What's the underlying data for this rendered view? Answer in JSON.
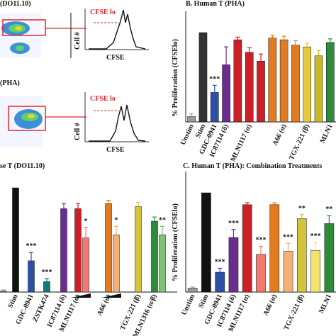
{
  "flow_panels": [
    {
      "title": "(DO11.10)",
      "gate_label": "CFSE lo",
      "y_label": "Cell #",
      "x_label": "CFSE"
    },
    {
      "title": "(PHA)",
      "gate_label": "CFSE lo",
      "y_label": "Cell #",
      "x_label": "CFSE"
    }
  ],
  "chart_data": [
    {
      "type": "bar",
      "title": "se T (DO11.10)",
      "categories": [
        null,
        "Stim",
        "GDC-0941",
        "ZSTK474",
        "IC87114 (δ)",
        "MLN1117 (α)",
        null,
        "A66 (α)",
        null,
        "TGX-221 (β)",
        "MLN1316 (α/β)",
        null
      ],
      "values": [
        1,
        100,
        30,
        10,
        80,
        80,
        52,
        85,
        55,
        82,
        68,
        55
      ],
      "errors": [
        1,
        0,
        8,
        3,
        5,
        5,
        10,
        3,
        8,
        4,
        4,
        8
      ],
      "colors": [
        "#8a8a8a",
        "#111111",
        "#2e4fa8",
        "#137a7a",
        "#6a2d8f",
        "#cc2027",
        "#f07a70",
        "#e07b22",
        "#f5b078",
        "#d4c43a",
        "#2e8b3a",
        "#7cc474"
      ],
      "annotations": [
        null,
        null,
        "***",
        "***",
        null,
        null,
        "*",
        null,
        "*",
        null,
        null,
        "**"
      ],
      "ylim": [
        0,
        100
      ]
    },
    {
      "type": "bar",
      "title": "B. Human T (PHA)",
      "y_label": "% Proliferation (CFSElo)",
      "categories": [
        "Unstim",
        "Stim",
        "GDC-0941",
        "IC87114 (δ)",
        null,
        "MLN1117 (α)",
        null,
        null,
        "A66 (α)",
        null,
        "TGX-221 (β)",
        null,
        "MLN1"
      ],
      "values": [
        6,
        100,
        33,
        64,
        92,
        78,
        68,
        94,
        92,
        86,
        84,
        74,
        89
      ],
      "errors": [
        3,
        0,
        8,
        20,
        3,
        5,
        8,
        3,
        4,
        5,
        4,
        6,
        4
      ],
      "colors": [
        "#9a9a9a",
        "#333333",
        "#2e4fa8",
        "#6a2d8f",
        "#cc2027",
        "#cc2027",
        "#cc2027",
        "#e07b22",
        "#e07b22",
        "#e07b22",
        "#e3c93b",
        "#c8b82a",
        "#2e8b3a"
      ],
      "annotations": [
        null,
        null,
        "***",
        null,
        null,
        null,
        null,
        null,
        null,
        null,
        null,
        null,
        null
      ],
      "ylim": [
        0,
        100
      ]
    },
    {
      "type": "bar",
      "title": "C. Human T (PHA): Combination Treatments",
      "y_label": "% Proliferation (CFSElo)",
      "categories": [
        "Unstim",
        "Stim",
        "GDC-0941",
        "IC87114 (δ)",
        "MLN1117 (α)",
        null,
        "A66 (α)",
        null,
        "TGX-221 (β)",
        null,
        "MLN1"
      ],
      "values": [
        4,
        100,
        20,
        55,
        88,
        38,
        88,
        41,
        74,
        42,
        69
      ],
      "errors": [
        1,
        0,
        4,
        8,
        2,
        8,
        2,
        8,
        4,
        8,
        8
      ],
      "colors": [
        "#9a9a9a",
        "#111111",
        "#2e4fa8",
        "#6a2d8f",
        "#cc2027",
        "#f07a70",
        "#e07b22",
        "#f5b078",
        "#d4c43a",
        "#f2e36a",
        "#2e8b3a"
      ],
      "annotations": [
        null,
        null,
        "***",
        "***",
        null,
        "***",
        null,
        "***",
        "**",
        "***",
        "**"
      ],
      "ylim": [
        0,
        100
      ]
    }
  ]
}
